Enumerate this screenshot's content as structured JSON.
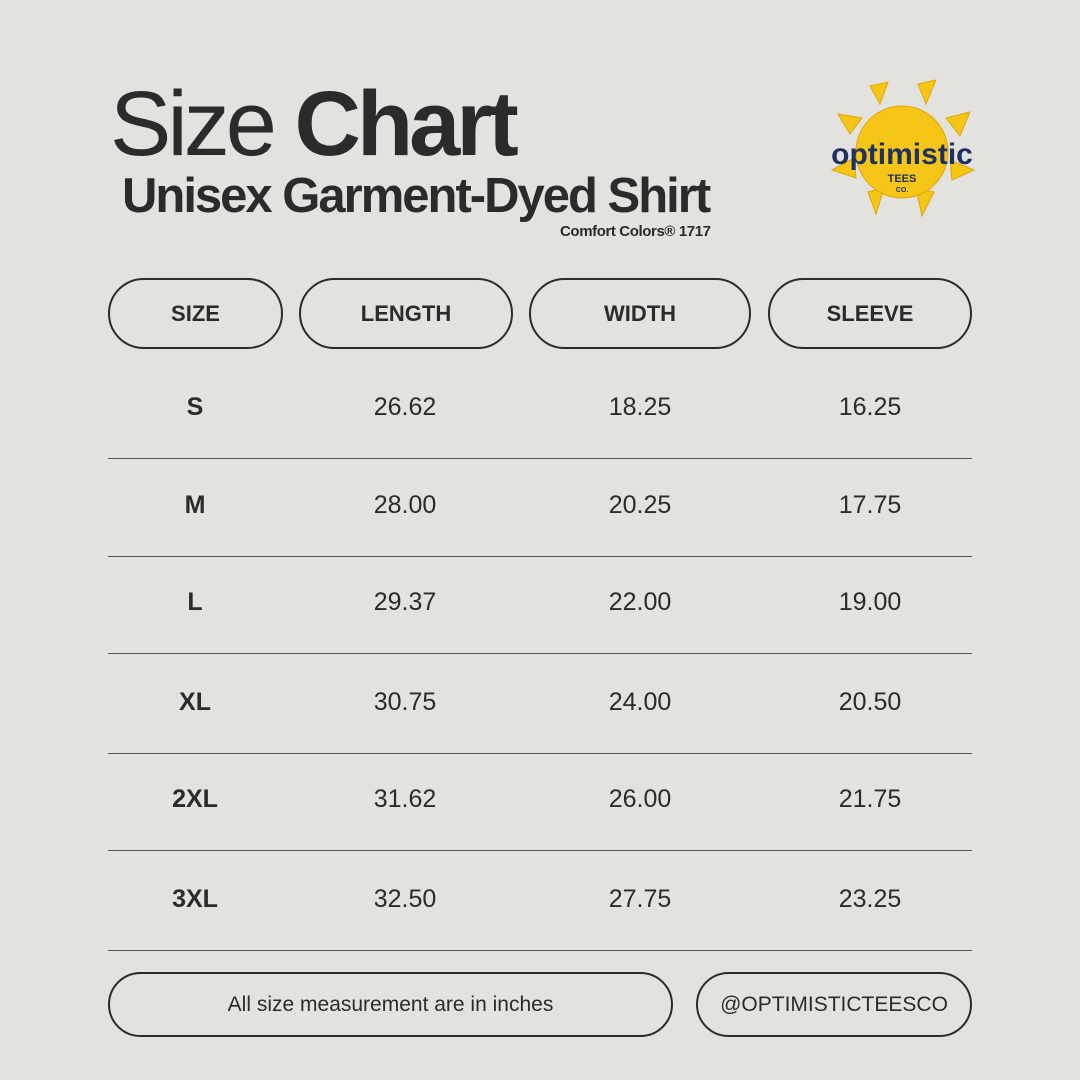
{
  "title": {
    "light": "Size",
    "bold": "Chart"
  },
  "subtitle": "Unisex Garment-Dyed Shirt",
  "model": "Comfort Colors® 1717",
  "logo": {
    "word": "optimistic",
    "sub1": "TEES",
    "sub2": "CO.",
    "colors": {
      "sun": "#f5c518",
      "text": "#1d3163"
    }
  },
  "table": {
    "headers": [
      "SIZE",
      "LENGTH",
      "WIDTH",
      "SLEEVE"
    ],
    "rows": [
      [
        "S",
        "26.62",
        "18.25",
        "16.25"
      ],
      [
        "M",
        "28.00",
        "20.25",
        "17.75"
      ],
      [
        "L",
        "29.37",
        "22.00",
        "19.00"
      ],
      [
        "XL",
        "30.75",
        "24.00",
        "20.50"
      ],
      [
        "2XL",
        "31.62",
        "26.00",
        "21.75"
      ],
      [
        "3XL",
        "32.50",
        "27.75",
        "23.25"
      ]
    ]
  },
  "footer": {
    "note": "All size measurement are in inches",
    "handle": "@OPTIMISTICTEESCO"
  }
}
